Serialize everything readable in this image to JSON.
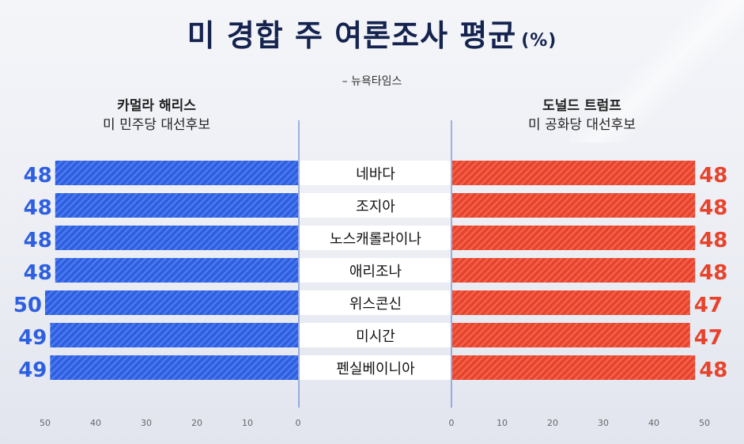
{
  "title": "미 경합 주 여론조사 평균",
  "title_unit": "(%)",
  "source": "– 뉴욕타임스",
  "left_candidate": {
    "name": "카멀라 해리스",
    "role": "미 민주당 대선후보"
  },
  "right_candidate": {
    "name": "도널드 트럼프",
    "role": "미 공화당 대선후보"
  },
  "colors": {
    "harris": "#2e5fe0",
    "trump": "#e8432c",
    "title": "#15234f"
  },
  "chart_data": {
    "type": "bar",
    "title": "미 경합 주 여론조사 평균 (%)",
    "categories": [
      "네바다",
      "조지아",
      "노스캐롤라이나",
      "애리조나",
      "위스콘신",
      "미시간",
      "펜실베이니아"
    ],
    "series": [
      {
        "name": "카멀라 해리스",
        "values": [
          48,
          48,
          48,
          48,
          50,
          49,
          49
        ]
      },
      {
        "name": "도널드 트럼프",
        "values": [
          48,
          48,
          48,
          48,
          47,
          47,
          48
        ]
      }
    ],
    "xlim": [
      0,
      50
    ],
    "ticks": [
      "50",
      "40",
      "30",
      "20",
      "10",
      "0"
    ],
    "ticks_right": [
      "0",
      "10",
      "20",
      "30",
      "40",
      "50"
    ]
  }
}
